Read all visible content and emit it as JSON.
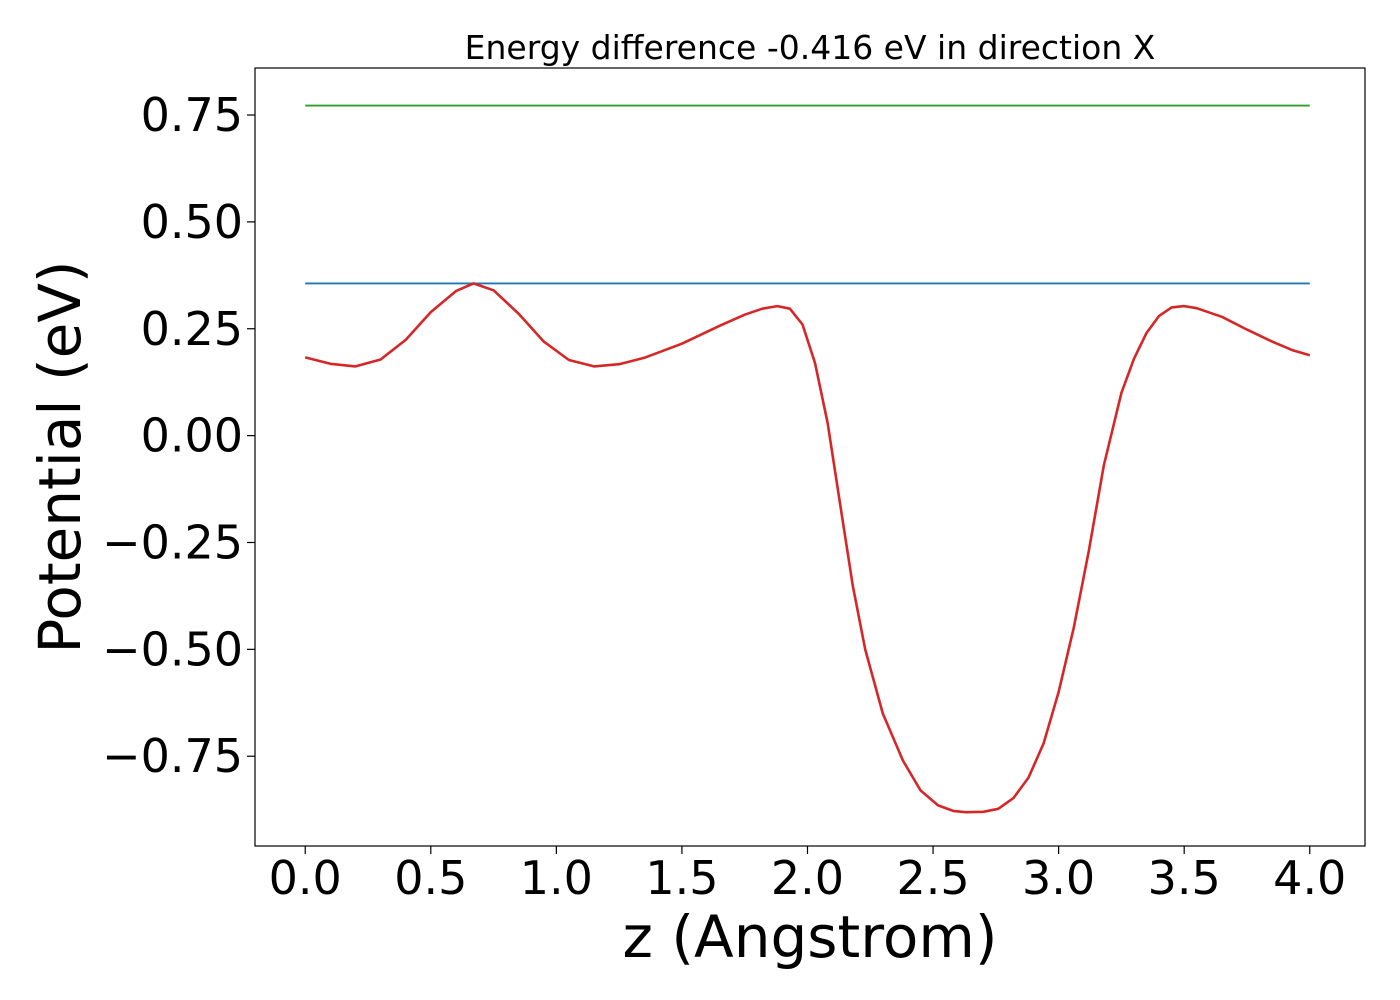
{
  "chart_data": {
    "type": "line",
    "title": "Energy difference -0.416 eV in direction X",
    "xlabel": "z (Angstrom)",
    "ylabel": "Potential (eV)",
    "xlim": [
      -0.2,
      4.22
    ],
    "ylim": [
      -0.96,
      0.86
    ],
    "xticks": [
      0.0,
      0.5,
      1.0,
      1.5,
      2.0,
      2.5,
      3.0,
      3.5,
      4.0
    ],
    "xtick_labels": [
      "0.0",
      "0.5",
      "1.0",
      "1.5",
      "2.0",
      "2.5",
      "3.0",
      "3.5",
      "4.0"
    ],
    "yticks": [
      0.75,
      0.5,
      0.25,
      0.0,
      -0.25,
      -0.5,
      -0.75
    ],
    "ytick_labels": [
      "0.75",
      "0.50",
      "0.25",
      "0.00",
      "−0.25",
      "−0.50",
      "−0.75"
    ],
    "grid": false,
    "series": [
      {
        "color": "#2ca02c",
        "x": [
          0.0,
          4.0
        ],
        "y": [
          0.772,
          0.772
        ]
      },
      {
        "color": "#1f77b4",
        "x": [
          0.0,
          4.0
        ],
        "y": [
          0.356,
          0.356
        ]
      },
      {
        "color": "#d62728",
        "x": [
          0.0,
          0.1,
          0.2,
          0.3,
          0.4,
          0.5,
          0.6,
          0.67,
          0.75,
          0.85,
          0.95,
          1.05,
          1.15,
          1.25,
          1.35,
          1.5,
          1.65,
          1.75,
          1.82,
          1.88,
          1.93,
          1.98,
          2.03,
          2.08,
          2.13,
          2.18,
          2.23,
          2.3,
          2.38,
          2.45,
          2.52,
          2.58,
          2.63,
          2.7,
          2.76,
          2.82,
          2.88,
          2.94,
          3.0,
          3.06,
          3.12,
          3.18,
          3.25,
          3.3,
          3.35,
          3.4,
          3.45,
          3.5,
          3.55,
          3.65,
          3.75,
          3.85,
          3.93,
          4.0
        ],
        "y": [
          0.183,
          0.168,
          0.162,
          0.178,
          0.224,
          0.289,
          0.338,
          0.356,
          0.34,
          0.285,
          0.22,
          0.177,
          0.162,
          0.167,
          0.182,
          0.215,
          0.257,
          0.283,
          0.297,
          0.303,
          0.297,
          0.26,
          0.17,
          0.03,
          -0.16,
          -0.35,
          -0.5,
          -0.65,
          -0.76,
          -0.83,
          -0.865,
          -0.878,
          -0.881,
          -0.88,
          -0.873,
          -0.848,
          -0.8,
          -0.72,
          -0.6,
          -0.45,
          -0.27,
          -0.07,
          0.1,
          0.18,
          0.24,
          0.28,
          0.3,
          0.303,
          0.298,
          0.278,
          0.248,
          0.22,
          0.2,
          0.188
        ]
      }
    ]
  }
}
